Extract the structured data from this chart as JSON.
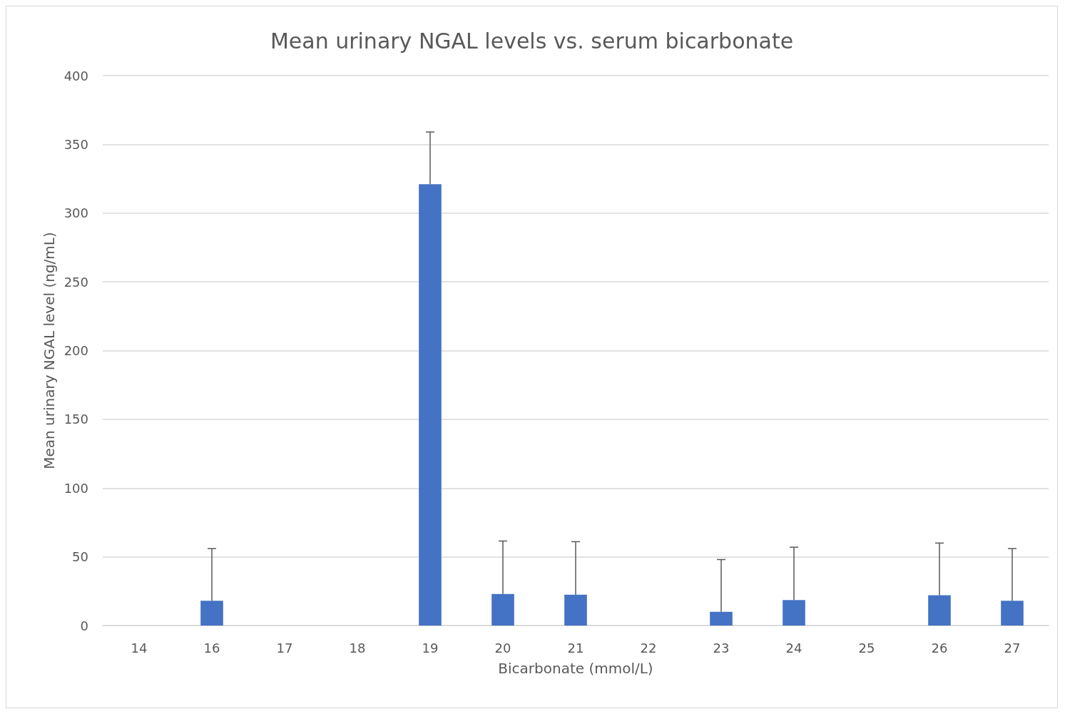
{
  "chart_data": {
    "type": "bar",
    "title": "Mean urinary NGAL levels vs. serum bicarbonate",
    "xlabel": "Bicarbonate (mmol/L)",
    "ylabel": "Mean urinary NGAL level (ng/mL)",
    "categories": [
      "14",
      "16",
      "17",
      "18",
      "19",
      "20",
      "21",
      "22",
      "23",
      "24",
      "25",
      "26",
      "27"
    ],
    "values": [
      null,
      18,
      null,
      null,
      321,
      23,
      22.5,
      null,
      10,
      18.5,
      null,
      22,
      18
    ],
    "errors": [
      null,
      [
        18,
        56
      ],
      null,
      null,
      [
        321,
        359
      ],
      [
        23,
        61.5
      ],
      [
        22.5,
        61
      ],
      null,
      [
        10,
        48
      ],
      [
        18.5,
        57
      ],
      null,
      [
        22,
        60
      ],
      [
        18,
        56
      ]
    ],
    "color": "#4472c4",
    "ylim": [
      0,
      400
    ],
    "yticks": [
      0,
      50,
      100,
      150,
      200,
      250,
      300,
      350,
      400
    ],
    "grid": "y"
  }
}
